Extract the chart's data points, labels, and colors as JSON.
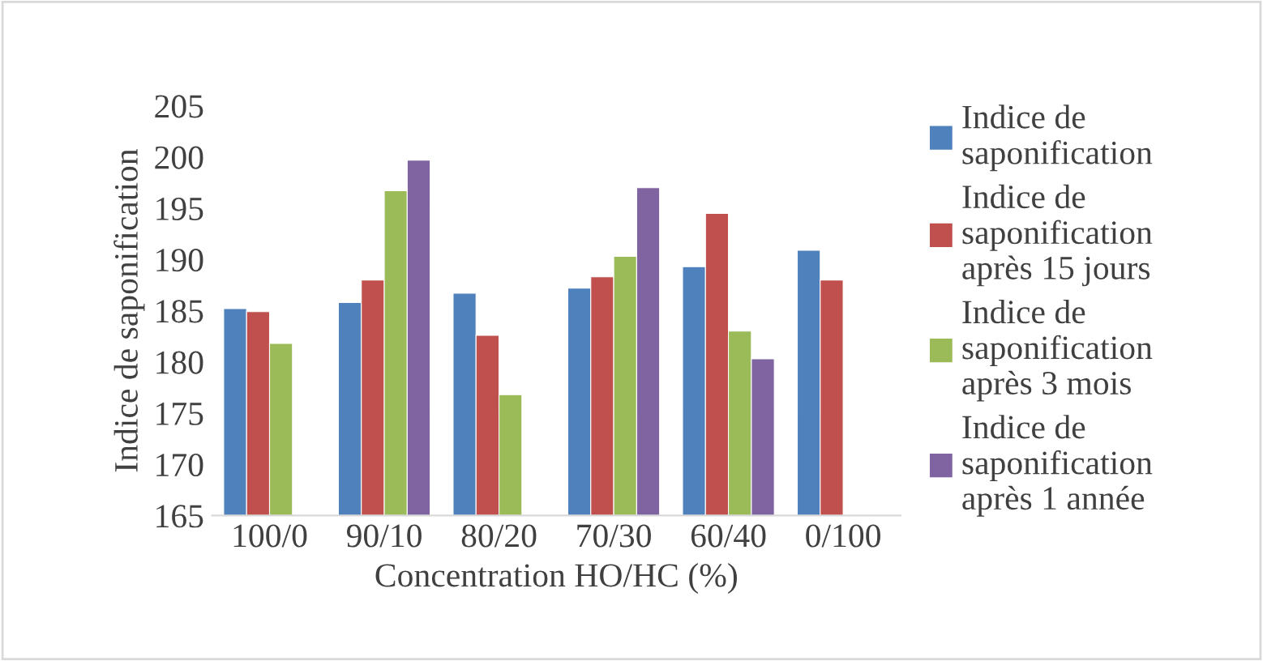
{
  "chart_data": {
    "type": "bar",
    "xlabel": "Concentration HO/HC (%)",
    "ylabel": "Indice de saponification",
    "categories": [
      "100/0",
      "90/10",
      "80/20",
      "70/30",
      "60/40",
      "0/100"
    ],
    "series": [
      {
        "name": "Indice de saponification",
        "color": "#4f81bd",
        "values": [
          185.2,
          185.8,
          186.7,
          187.2,
          189.3,
          190.9
        ]
      },
      {
        "name": "Indice de saponification après 15 jours",
        "color": "#c0504d",
        "values": [
          184.9,
          188.0,
          182.6,
          188.3,
          194.5,
          188.0
        ]
      },
      {
        "name": "Indice de saponification après 3 mois",
        "color": "#9bbb59",
        "values": [
          181.8,
          196.7,
          176.8,
          190.3,
          183.0,
          null
        ]
      },
      {
        "name": "Indice de saponification après 1 année",
        "color": "#8064a2",
        "values": [
          null,
          199.7,
          null,
          197.0,
          180.3,
          null
        ]
      }
    ],
    "ylim": [
      165,
      205
    ],
    "yticks": [
      165,
      170,
      175,
      180,
      185,
      190,
      195,
      200,
      205
    ],
    "grid": false,
    "legend": "right"
  }
}
